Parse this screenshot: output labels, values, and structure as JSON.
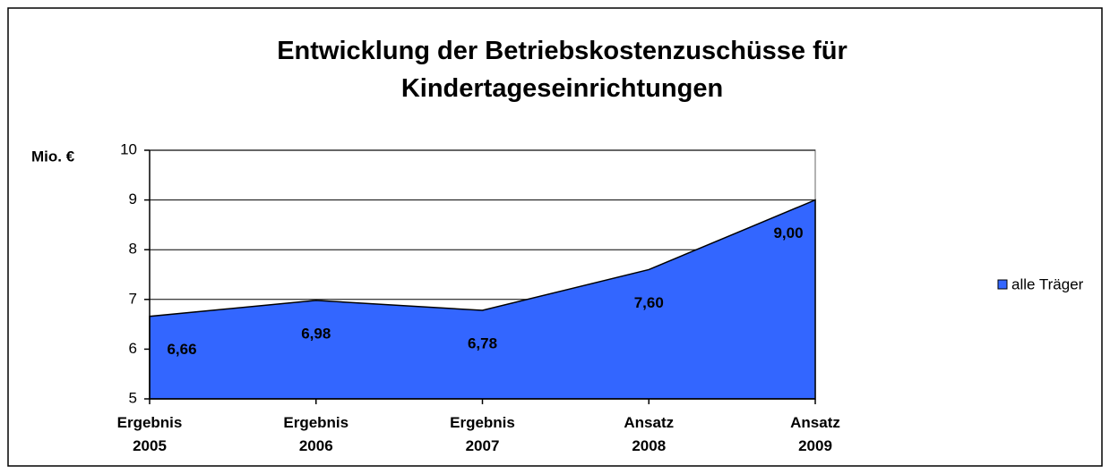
{
  "chart_data": {
    "type": "area",
    "title": "Entwicklung der Betriebskostenzuschüsse für\nKindertageseinrichtungen",
    "y_label": "Mio. €",
    "categories": [
      "Ergebnis\n2005",
      "Ergebnis\n2006",
      "Ergebnis\n2007",
      "Ansatz\n2008",
      "Ansatz\n2009"
    ],
    "series": [
      {
        "name": "alle Träger",
        "color": "#3366ff",
        "values": [
          6.66,
          6.98,
          6.78,
          7.6,
          9.0
        ],
        "value_labels": [
          "6,66",
          "6,98",
          "6,78",
          "7,60",
          "9,00"
        ]
      }
    ],
    "ylim": [
      5,
      10
    ],
    "yticks": [
      5,
      6,
      7,
      8,
      9,
      10
    ],
    "grid": true,
    "legend": "right"
  }
}
